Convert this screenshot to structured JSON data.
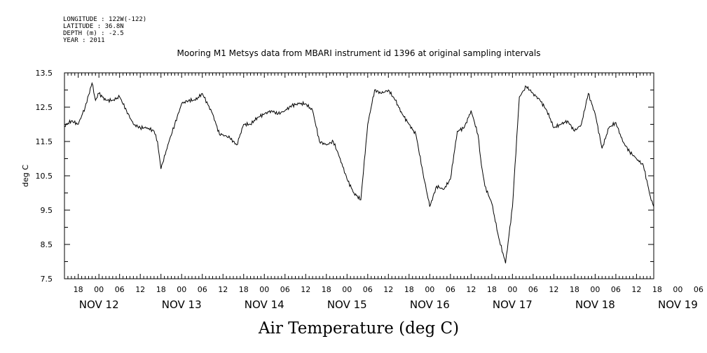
{
  "header": {
    "longitude": "LONGITUDE : 122W(-122)",
    "latitude": "LATITUDE : 36.8N",
    "depth": "DEPTH (m) : -2.5",
    "year": "YEAR : 2011"
  },
  "chart_data": {
    "type": "line",
    "title": "Mooring M1 Metsys data from MBARI instrument id 1396 at original sampling intervals",
    "xlabel": "Air Temperature (deg C)",
    "ylabel": "deg C",
    "ylim": [
      7.5,
      13.5
    ],
    "yticks": [
      "7.5",
      "8.5",
      "9.5",
      "10.5",
      "11.5",
      "12.5",
      "13.5"
    ],
    "xlim": [
      "2011-11-12T14:00",
      "2011-11-19T17:00"
    ],
    "hour_ticks": [
      "18",
      "00",
      "06",
      "12",
      "18",
      "00",
      "06",
      "12",
      "18",
      "00",
      "06",
      "12",
      "18",
      "00",
      "06",
      "12",
      "18",
      "00",
      "06",
      "12",
      "18",
      "00",
      "06",
      "12",
      "18",
      "00",
      "06",
      "12",
      "18",
      "00",
      "06",
      "12"
    ],
    "day_labels": [
      "NOV 12",
      "NOV 13",
      "NOV 14",
      "NOV 15",
      "NOV 16",
      "NOV 17",
      "NOV 18",
      "NOV 19"
    ],
    "series": [
      {
        "x": [
          "2011-11-12T14:00",
          "2011-11-12T16:00",
          "2011-11-12T18:00",
          "2011-11-12T20:00",
          "2011-11-12T22:00",
          "2011-11-12T23:00",
          "2011-11-13T00:00",
          "2011-11-13T02:00",
          "2011-11-13T04:00",
          "2011-11-13T06:00",
          "2011-11-13T08:00",
          "2011-11-13T10:00",
          "2011-11-13T12:00",
          "2011-11-13T14:00",
          "2011-11-13T16:00",
          "2011-11-13T17:00",
          "2011-11-13T18:00",
          "2011-11-13T20:00",
          "2011-11-13T22:00",
          "2011-11-14T00:00",
          "2011-11-14T02:00",
          "2011-11-14T04:00",
          "2011-11-14T06:00",
          "2011-11-14T09:00",
          "2011-11-14T11:00",
          "2011-11-14T12:00",
          "2011-11-14T14:00",
          "2011-11-14T16:00",
          "2011-11-14T18:00",
          "2011-11-14T20:00",
          "2011-11-14T22:00",
          "2011-11-15T00:00",
          "2011-11-15T02:00",
          "2011-11-15T04:00",
          "2011-11-15T06:00",
          "2011-11-15T08:00",
          "2011-11-15T10:00",
          "2011-11-15T12:00",
          "2011-11-15T14:00",
          "2011-11-15T16:00",
          "2011-11-15T18:00",
          "2011-11-15T20:00",
          "2011-11-15T22:00",
          "2011-11-16T00:00",
          "2011-11-16T02:00",
          "2011-11-16T04:00",
          "2011-11-16T06:00",
          "2011-11-16T08:00",
          "2011-11-16T10:00",
          "2011-11-16T12:00",
          "2011-11-16T14:00",
          "2011-11-16T16:00",
          "2011-11-16T18:00",
          "2011-11-16T20:00",
          "2011-11-16T22:00",
          "2011-11-17T00:00",
          "2011-11-17T02:00",
          "2011-11-17T04:00",
          "2011-11-17T06:00",
          "2011-11-17T08:00",
          "2011-11-17T10:00",
          "2011-11-17T12:00",
          "2011-11-17T14:00",
          "2011-11-17T15:00",
          "2011-11-17T16:00",
          "2011-11-17T18:00",
          "2011-11-17T20:00",
          "2011-11-17T22:00",
          "2011-11-18T00:00",
          "2011-11-18T02:00",
          "2011-11-18T04:00",
          "2011-11-18T06:00",
          "2011-11-18T08:00",
          "2011-11-18T10:00",
          "2011-11-18T12:00",
          "2011-11-18T14:00",
          "2011-11-18T16:00",
          "2011-11-18T18:00",
          "2011-11-18T20:00",
          "2011-11-18T22:00",
          "2011-11-19T00:00",
          "2011-11-19T02:00",
          "2011-11-19T04:00",
          "2011-11-19T06:00",
          "2011-11-19T08:00",
          "2011-11-19T10:00",
          "2011-11-19T12:00",
          "2011-11-19T14:00",
          "2011-11-19T16:00",
          "2011-11-19T17:00"
        ],
        "y": [
          11.95,
          12.1,
          12.0,
          12.5,
          13.2,
          12.7,
          12.9,
          12.7,
          12.7,
          12.8,
          12.4,
          12.0,
          11.9,
          11.9,
          11.8,
          11.5,
          10.7,
          11.4,
          12.0,
          12.6,
          12.7,
          12.7,
          12.9,
          12.3,
          11.7,
          11.7,
          11.6,
          11.4,
          12.0,
          12.0,
          12.2,
          12.3,
          12.4,
          12.3,
          12.4,
          12.55,
          12.6,
          12.6,
          12.4,
          11.5,
          11.4,
          11.5,
          11.0,
          10.4,
          10.0,
          9.8,
          12.0,
          13.0,
          12.9,
          13.0,
          12.7,
          12.3,
          12.0,
          11.7,
          10.6,
          9.6,
          10.2,
          10.1,
          10.4,
          11.8,
          11.9,
          12.4,
          11.7,
          10.8,
          10.2,
          9.7,
          8.7,
          7.95,
          9.6,
          12.8,
          13.1,
          12.9,
          12.7,
          12.4,
          11.9,
          12.0,
          12.1,
          11.8,
          12.0,
          12.9,
          12.3,
          11.3,
          11.9,
          12.05,
          11.5,
          11.2,
          11.0,
          10.8,
          9.9,
          9.6
        ]
      }
    ]
  }
}
